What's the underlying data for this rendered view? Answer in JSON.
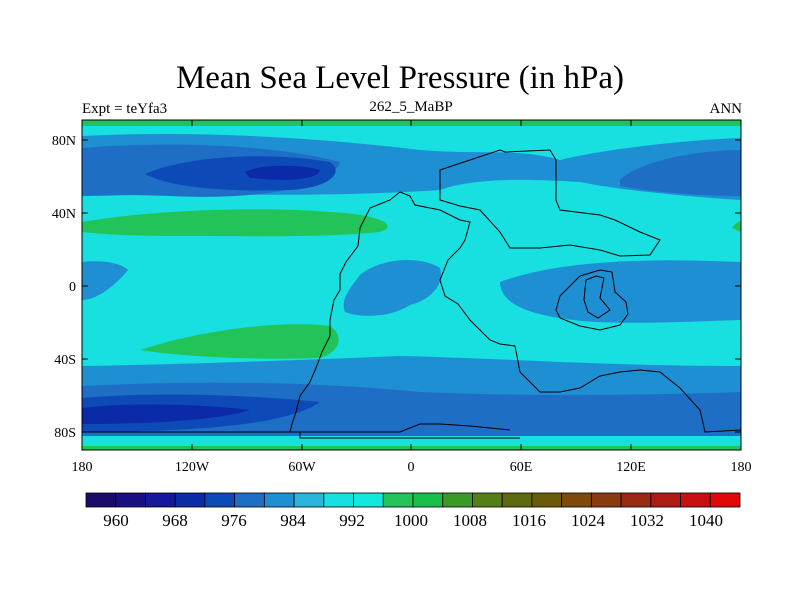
{
  "map": {
    "title": "Mean Sea Level Pressure (in hPa)",
    "left_label": "Expt = teYfa3",
    "center_label": "262_5_MaBP",
    "right_label": "ANN",
    "variable": "Mean Sea Level Pressure",
    "units": "hPa",
    "lon_ticks": [
      "180",
      "120W",
      "60W",
      "0",
      "60E",
      "120E",
      "180"
    ],
    "lat_ticks": [
      "80N",
      "40N",
      "0",
      "40S",
      "80S"
    ]
  },
  "colorbar": {
    "labels": [
      "960",
      "968",
      "976",
      "984",
      "992",
      "1000",
      "1008",
      "1016",
      "1024",
      "1032",
      "1040"
    ],
    "colors": [
      "#1c0a6b",
      "#1a0f80",
      "#14189a",
      "#0a2aa8",
      "#0d4ab8",
      "#1e6ec6",
      "#1f8fd3",
      "#2ab5dd",
      "#19e0e0",
      "#12e8dc",
      "#22c45a",
      "#17c04a",
      "#3a9a28",
      "#537e18",
      "#5e6a10",
      "#6a5a0c",
      "#7e4a0c",
      "#8a3a10",
      "#9a2a14",
      "#b01a14",
      "#c81010",
      "#e00808"
    ]
  }
}
